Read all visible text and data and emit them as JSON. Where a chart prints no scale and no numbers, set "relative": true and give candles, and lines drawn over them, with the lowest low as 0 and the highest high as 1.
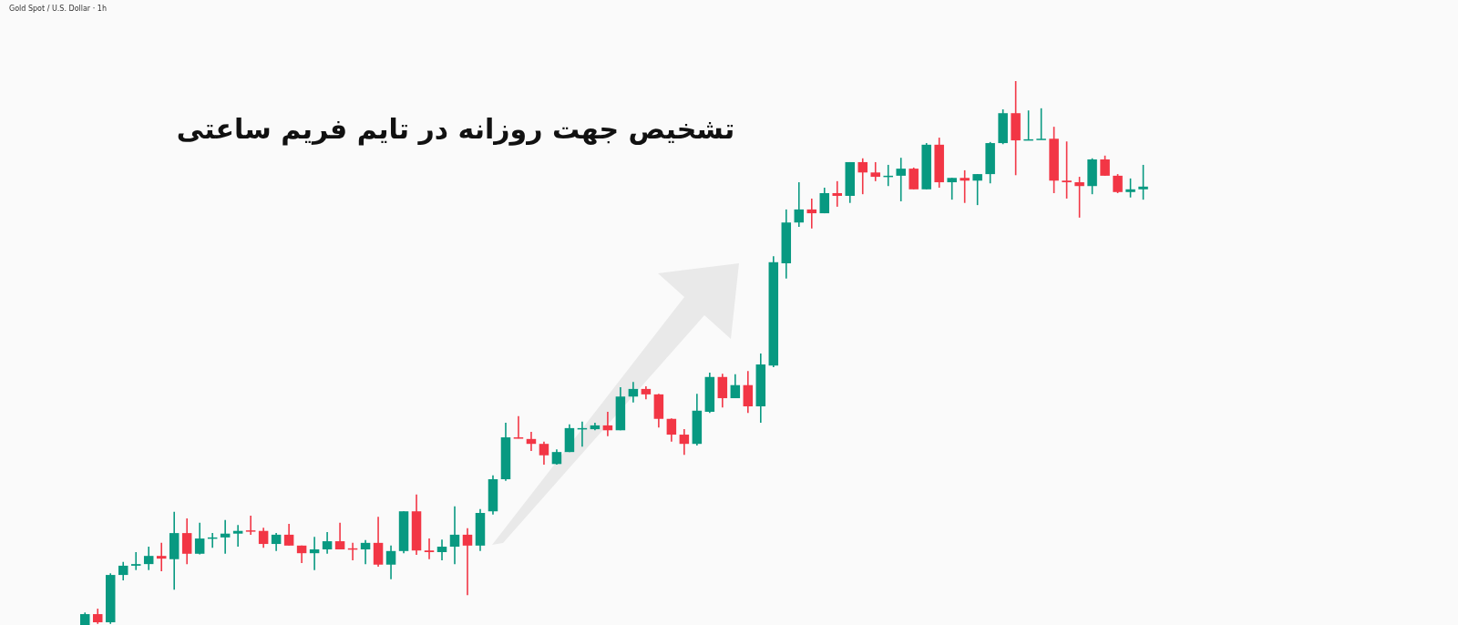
{
  "chart_data": {
    "type": "candlestick",
    "title": "تشخیص جهت روزانه در تایم فریم ساعتی",
    "annotations": [
      "Gold Spot / U.S. Dollar · 1h"
    ],
    "relative": true,
    "categories": [
      null,
      null,
      null,
      null,
      null,
      null,
      null,
      null,
      null,
      null,
      null,
      null,
      null,
      null,
      null,
      null,
      null,
      null,
      null,
      null,
      null,
      null,
      null,
      null,
      null,
      null,
      null,
      null,
      null,
      null,
      null,
      null,
      null,
      null,
      null,
      null,
      null,
      null,
      null,
      null,
      null,
      null,
      null,
      null,
      null,
      null,
      null,
      null,
      null,
      null,
      null,
      null,
      null,
      null,
      null,
      null,
      null,
      null,
      null,
      null,
      null,
      null,
      null,
      null,
      null,
      null,
      null,
      null,
      null,
      null,
      null,
      null,
      null,
      null,
      null,
      null,
      null,
      null,
      null,
      null,
      null,
      null,
      null,
      null
    ],
    "ohlc": [
      [
        0,
        0.023,
        0,
        0.02
      ],
      [
        0.02,
        0.03,
        0.002,
        0.005
      ],
      [
        0.005,
        0.095,
        0.002,
        0.092
      ],
      [
        0.092,
        0.116,
        0.082,
        0.109
      ],
      [
        0.109,
        0.134,
        0.101,
        0.112
      ],
      [
        0.112,
        0.144,
        0.101,
        0.127
      ],
      [
        0.127,
        0.151,
        0.099,
        0.122
      ],
      [
        0.121,
        0.208,
        0.065,
        0.169
      ],
      [
        0.169,
        0.196,
        0.112,
        0.131
      ],
      [
        0.131,
        0.188,
        0.13,
        0.159
      ],
      [
        0.159,
        0.169,
        0.142,
        0.161
      ],
      [
        0.161,
        0.193,
        0.131,
        0.168
      ],
      [
        0.168,
        0.184,
        0.144,
        0.173
      ],
      [
        0.174,
        0.201,
        0.166,
        0.173
      ],
      [
        0.173,
        0.179,
        0.142,
        0.149
      ],
      [
        0.149,
        0.169,
        0.136,
        0.166
      ],
      [
        0.166,
        0.186,
        0.146,
        0.146
      ],
      [
        0.146,
        0.146,
        0.114,
        0.132
      ],
      [
        0.132,
        0.162,
        0.101,
        0.139
      ],
      [
        0.139,
        0.171,
        0.131,
        0.154
      ],
      [
        0.154,
        0.188,
        0.139,
        0.139
      ],
      [
        0.141,
        0.151,
        0.119,
        0.139
      ],
      [
        0.139,
        0.156,
        0.112,
        0.151
      ],
      [
        0.151,
        0.199,
        0.107,
        0.111
      ],
      [
        0.111,
        0.146,
        0.084,
        0.136
      ],
      [
        0.136,
        0.209,
        0.132,
        0.209
      ],
      [
        0.209,
        0.24,
        0.129,
        0.137
      ],
      [
        0.137,
        0.159,
        0.121,
        0.134
      ],
      [
        0.134,
        0.157,
        0.119,
        0.144
      ],
      [
        0.144,
        0.218,
        0.112,
        0.166
      ],
      [
        0.166,
        0.178,
        0.055,
        0.146
      ],
      [
        0.146,
        0.213,
        0.136,
        0.206
      ],
      [
        0.209,
        0.275,
        0.203,
        0.268
      ],
      [
        0.268,
        0.372,
        0.265,
        0.345
      ],
      [
        0.345,
        0.384,
        0.343,
        0.343
      ],
      [
        0.342,
        0.355,
        0.32,
        0.333
      ],
      [
        0.333,
        0.337,
        0.295,
        0.312
      ],
      [
        0.296,
        0.323,
        0.295,
        0.318
      ],
      [
        0.318,
        0.369,
        0.318,
        0.362
      ],
      [
        0.36,
        0.374,
        0.328,
        0.362
      ],
      [
        0.36,
        0.372,
        0.358,
        0.367
      ],
      [
        0.367,
        0.392,
        0.347,
        0.358
      ],
      [
        0.358,
        0.437,
        0.358,
        0.42
      ],
      [
        0.42,
        0.447,
        0.409,
        0.434
      ],
      [
        0.434,
        0.439,
        0.415,
        0.424
      ],
      [
        0.424,
        0.425,
        0.363,
        0.379
      ],
      [
        0.379,
        0.38,
        0.337,
        0.35
      ],
      [
        0.35,
        0.36,
        0.313,
        0.333
      ],
      [
        0.333,
        0.425,
        0.33,
        0.394
      ],
      [
        0.392,
        0.464,
        0.39,
        0.456
      ],
      [
        0.456,
        0.462,
        0.4,
        0.417
      ],
      [
        0.417,
        0.461,
        0.417,
        0.441
      ],
      [
        0.441,
        0.467,
        0.39,
        0.402
      ],
      [
        0.402,
        0.499,
        0.372,
        0.479
      ],
      [
        0.477,
        0.678,
        0.474,
        0.667
      ],
      [
        0.665,
        0.764,
        0.637,
        0.74
      ],
      [
        0.74,
        0.814,
        0.732,
        0.764
      ],
      [
        0.764,
        0.784,
        0.729,
        0.757
      ],
      [
        0.757,
        0.804,
        0.757,
        0.794
      ],
      [
        0.794,
        0.816,
        0.769,
        0.789
      ],
      [
        0.789,
        0.851,
        0.776,
        0.851
      ],
      [
        0.851,
        0.858,
        0.792,
        0.832
      ],
      [
        0.832,
        0.851,
        0.816,
        0.824
      ],
      [
        0.824,
        0.846,
        0.807,
        0.826
      ],
      [
        0.826,
        0.859,
        0.779,
        0.839
      ],
      [
        0.839,
        0.841,
        0.801,
        0.801
      ],
      [
        0.801,
        0.886,
        0.801,
        0.883
      ],
      [
        0.883,
        0.896,
        0.804,
        0.814
      ],
      [
        0.814,
        0.822,
        0.782,
        0.822
      ],
      [
        0.822,
        0.836,
        0.776,
        0.817
      ],
      [
        0.817,
        0.829,
        0.772,
        0.829
      ],
      [
        0.829,
        0.888,
        0.812,
        0.886
      ],
      [
        0.886,
        0.948,
        0.884,
        0.941
      ],
      [
        0.941,
        1,
        0.827,
        0.891
      ],
      [
        0.891,
        0.946,
        0.891,
        0.893
      ],
      [
        0.893,
        0.95,
        0.893,
        0.894
      ],
      [
        0.894,
        0.916,
        0.794,
        0.817
      ],
      [
        0.817,
        0.889,
        0.784,
        0.814
      ],
      [
        0.814,
        0.824,
        0.749,
        0.807
      ],
      [
        0.807,
        0.858,
        0.792,
        0.856
      ],
      [
        0.856,
        0.863,
        0.826,
        0.826
      ],
      [
        0.826,
        0.829,
        0.794,
        0.796
      ],
      [
        0.796,
        0.821,
        0.786,
        0.801
      ],
      [
        0.801,
        0.846,
        0.782,
        0.806
      ]
    ]
  }
}
